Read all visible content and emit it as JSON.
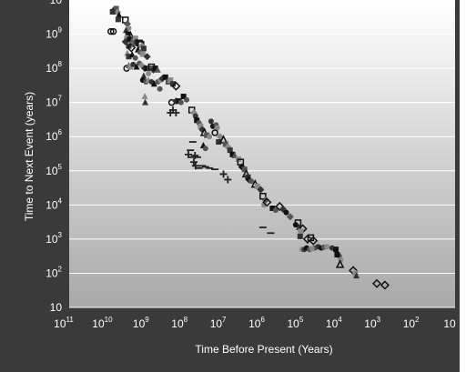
{
  "colors": {
    "frame": "#3a3a3a",
    "plot_top": "#ffffff",
    "plot_bottom": "#a8a8a8",
    "grid": "#ffffff",
    "text": "#ffffff"
  },
  "chart_data": {
    "type": "scatter",
    "xscale": "log",
    "yscale": "log",
    "x_reversed": true,
    "xlabel": "Time Before Present (Years)",
    "ylabel": "Time to Next Event (years)",
    "xlim": [
      100000000000.0,
      1
    ],
    "ylim": [
      10,
      10000000000.0
    ],
    "grid": "horizontal",
    "legend": "none",
    "x_ticks": [
      {
        "base": "10",
        "exp": "11"
      },
      {
        "base": "10",
        "exp": "10"
      },
      {
        "base": "10",
        "exp": "9"
      },
      {
        "base": "10",
        "exp": "8"
      },
      {
        "base": "10",
        "exp": "7"
      },
      {
        "base": "10",
        "exp": "6"
      },
      {
        "base": "10",
        "exp": "5"
      },
      {
        "base": "10",
        "exp": "4"
      },
      {
        "base": "10",
        "exp": "3"
      },
      {
        "base": "10",
        "exp": "2"
      },
      {
        "base": "10",
        "exp": ""
      }
    ],
    "y_ticks": [
      {
        "base": "10",
        "exp": ""
      },
      {
        "base": "10",
        "exp": "2"
      },
      {
        "base": "10",
        "exp": "3"
      },
      {
        "base": "10",
        "exp": "4"
      },
      {
        "base": "10",
        "exp": "5"
      },
      {
        "base": "10",
        "exp": "6"
      },
      {
        "base": "10",
        "exp": "7"
      },
      {
        "base": "10",
        "exp": "8"
      },
      {
        "base": "10",
        "exp": "9"
      },
      {
        "base": "10",
        "exp": ""
      }
    ],
    "points": [
      {
        "x": 5000000000.0,
        "y": 5000000000.0,
        "m": "diamond-open"
      },
      {
        "x": 4600000000.0,
        "y": 5600000000.0,
        "m": "square"
      },
      {
        "x": 4200000000.0,
        "y": 4400000000.0,
        "m": "diamond"
      },
      {
        "x": 5800000000.0,
        "y": 4500000000.0,
        "m": "square"
      },
      {
        "x": 3800000000.0,
        "y": 3600000000.0,
        "m": "triangle"
      },
      {
        "x": 6500000000.0,
        "y": 1200000000.0,
        "m": "circle-open"
      },
      {
        "x": 5500000000.0,
        "y": 1200000000.0,
        "m": "circle-open"
      },
      {
        "x": 4000000000.0,
        "y": 2700000000.0,
        "m": "square"
      },
      {
        "x": 2500000000.0,
        "y": 2600000000.0,
        "m": "square-open"
      },
      {
        "x": 2200000000.0,
        "y": 2000000000.0,
        "m": "diamond"
      },
      {
        "x": 2000000000.0,
        "y": 1500000000.0,
        "m": "circle"
      },
      {
        "x": 2400000000.0,
        "y": 1300000000.0,
        "m": "triangle"
      },
      {
        "x": 2100000000.0,
        "y": 1000000000.0,
        "m": "square"
      },
      {
        "x": 1800000000.0,
        "y": 900000000.0,
        "m": "triangle-open"
      },
      {
        "x": 2300000000.0,
        "y": 800000000.0,
        "m": "circle"
      },
      {
        "x": 2500000000.0,
        "y": 600000000.0,
        "m": "diamond"
      },
      {
        "x": 1900000000.0,
        "y": 700000000.0,
        "m": "square"
      },
      {
        "x": 1600000000.0,
        "y": 650000000.0,
        "m": "triangle"
      },
      {
        "x": 1500000000.0,
        "y": 500000000.0,
        "m": "circle"
      },
      {
        "x": 2000000000.0,
        "y": 450000000.0,
        "m": "square"
      },
      {
        "x": 1700000000.0,
        "y": 400000000.0,
        "m": "diamond-open"
      },
      {
        "x": 1400000000.0,
        "y": 550000000.0,
        "m": "triangle"
      },
      {
        "x": 1300000000.0,
        "y": 750000000.0,
        "m": "square"
      },
      {
        "x": 1200000000.0,
        "y": 600000000.0,
        "m": "circle"
      },
      {
        "x": 1000000000.0,
        "y": 550000000.0,
        "m": "square-open"
      },
      {
        "x": 900000000.0,
        "y": 500000000.0,
        "m": "square-open"
      },
      {
        "x": 850000000.0,
        "y": 450000000.0,
        "m": "diamond"
      },
      {
        "x": 750000000.0,
        "y": 380000000.0,
        "m": "square"
      },
      {
        "x": 1100000000.0,
        "y": 350000000.0,
        "m": "triangle"
      },
      {
        "x": 950000000.0,
        "y": 300000000.0,
        "m": "circle"
      },
      {
        "x": 2200000000.0,
        "y": 280000000.0,
        "m": "triangle"
      },
      {
        "x": 2000000000.0,
        "y": 220000000.0,
        "m": "square"
      },
      {
        "x": 1600000000.0,
        "y": 250000000.0,
        "m": "triangle"
      },
      {
        "x": 1300000000.0,
        "y": 200000000.0,
        "m": "circle"
      },
      {
        "x": 800000000.0,
        "y": 260000000.0,
        "m": "square"
      },
      {
        "x": 600000000.0,
        "y": 220000000.0,
        "m": "diamond"
      },
      {
        "x": 2300000000.0,
        "y": 100000000.0,
        "m": "circle-open"
      },
      {
        "x": 2000000000.0,
        "y": 120000000.0,
        "m": "triangle"
      },
      {
        "x": 1800000000.0,
        "y": 110000000.0,
        "m": "square"
      },
      {
        "x": 1500000000.0,
        "y": 130000000.0,
        "m": "circle"
      },
      {
        "x": 1200000000.0,
        "y": 110000000.0,
        "m": "triangle"
      },
      {
        "x": 1000000000.0,
        "y": 140000000.0,
        "m": "circle"
      },
      {
        "x": 850000000.0,
        "y": 120000000.0,
        "m": "diamond"
      },
      {
        "x": 700000000.0,
        "y": 100000000.0,
        "m": "diamond"
      },
      {
        "x": 600000000.0,
        "y": 100000000.0,
        "m": "square"
      },
      {
        "x": 500000000.0,
        "y": 100000000.0,
        "m": "square"
      },
      {
        "x": 450000000.0,
        "y": 110000000.0,
        "m": "square-open"
      },
      {
        "x": 400000000.0,
        "y": 90000000.0,
        "m": "diamond"
      },
      {
        "x": 350000000.0,
        "y": 100000000.0,
        "m": "square"
      },
      {
        "x": 300000000.0,
        "y": 90000000.0,
        "m": "triangle"
      },
      {
        "x": 550000000.0,
        "y": 70000000.0,
        "m": "circle"
      },
      {
        "x": 750000000.0,
        "y": 60000000.0,
        "m": "triangle"
      },
      {
        "x": 800000000.0,
        "y": 45000000.0,
        "m": "circle"
      },
      {
        "x": 650000000.0,
        "y": 40000000.0,
        "m": "circle"
      },
      {
        "x": 550000000.0,
        "y": 45000000.0,
        "m": "triangle"
      },
      {
        "x": 450000000.0,
        "y": 40000000.0,
        "m": "circle"
      },
      {
        "x": 380000000.0,
        "y": 35000000.0,
        "m": "triangle"
      },
      {
        "x": 300000000.0,
        "y": 40000000.0,
        "m": "circle"
      },
      {
        "x": 250000000.0,
        "y": 45000000.0,
        "m": "circle"
      },
      {
        "x": 220000000.0,
        "y": 50000000.0,
        "m": "diamond"
      },
      {
        "x": 180000000.0,
        "y": 55000000.0,
        "m": "square"
      },
      {
        "x": 150000000.0,
        "y": 40000000.0,
        "m": "square"
      },
      {
        "x": 130000000.0,
        "y": 45000000.0,
        "m": "square"
      },
      {
        "x": 110000000.0,
        "y": 35000000.0,
        "m": "square"
      },
      {
        "x": 90000000.0,
        "y": 30000000.0,
        "m": "diamond-open"
      },
      {
        "x": 260000000.0,
        "y": 25000000.0,
        "m": "circle"
      },
      {
        "x": 700000000.0,
        "y": 15000000.0,
        "m": "triangle"
      },
      {
        "x": 680000000.0,
        "y": 10000000.0,
        "m": "triangle"
      },
      {
        "x": 55000000.0,
        "y": 15000000.0,
        "m": "square"
      },
      {
        "x": 45000000.0,
        "y": 12000000.0,
        "m": "circle"
      },
      {
        "x": 120000000.0,
        "y": 10000000.0,
        "m": "circle-open"
      },
      {
        "x": 90000000.0,
        "y": 11000000.0,
        "m": "diamond"
      },
      {
        "x": 75000000.0,
        "y": 11000000.0,
        "m": "square"
      },
      {
        "x": 65000000.0,
        "y": 10000000.0,
        "m": "circle"
      },
      {
        "x": 110000000.0,
        "y": 6000000.0,
        "m": "plus"
      },
      {
        "x": 90000000.0,
        "y": 5000000.0,
        "m": "plus"
      },
      {
        "x": 130000000.0,
        "y": 5000000.0,
        "m": "plus"
      },
      {
        "x": 32000000.0,
        "y": 6000000.0,
        "m": "square-open"
      },
      {
        "x": 28000000.0,
        "y": 5000000.0,
        "m": "diamond"
      },
      {
        "x": 25000000.0,
        "y": 4000000.0,
        "m": "circle"
      },
      {
        "x": 23000000.0,
        "y": 3000000.0,
        "m": "square"
      },
      {
        "x": 20000000.0,
        "y": 2500000.0,
        "m": "circle"
      },
      {
        "x": 18000000.0,
        "y": 2000000.0,
        "m": "square"
      },
      {
        "x": 16000000.0,
        "y": 1600000.0,
        "m": "diamond"
      },
      {
        "x": 14000000.0,
        "y": 1300000.0,
        "m": "triangle-open"
      },
      {
        "x": 12000000.0,
        "y": 1100000.0,
        "m": "square"
      },
      {
        "x": 10000000.0,
        "y": 1000000.0,
        "m": "circle"
      },
      {
        "x": 9000000.0,
        "y": 2800000.0,
        "m": "circle"
      },
      {
        "x": 8000000.0,
        "y": 2000000.0,
        "m": "circle"
      },
      {
        "x": 6500000.0,
        "y": 2200000.0,
        "m": "circle"
      },
      {
        "x": 6000000.0,
        "y": 1800000.0,
        "m": "circle"
      },
      {
        "x": 7000000.0,
        "y": 1300000.0,
        "m": "circle-open"
      },
      {
        "x": 15000000.0,
        "y": 550000.0,
        "m": "triangle"
      },
      {
        "x": 13000000.0,
        "y": 450000.0,
        "m": "circle"
      },
      {
        "x": 5000000.0,
        "y": 1000000.0,
        "m": "diamond"
      },
      {
        "x": 5500000.0,
        "y": 700000.0,
        "m": "square"
      },
      {
        "x": 4000000.0,
        "y": 800000.0,
        "m": "triangle-open"
      },
      {
        "x": 3500000.0,
        "y": 600000.0,
        "m": "square"
      },
      {
        "x": 3000000.0,
        "y": 500000.0,
        "m": "diamond"
      },
      {
        "x": 2600000.0,
        "y": 400000.0,
        "m": "square"
      },
      {
        "x": 2200000.0,
        "y": 300000.0,
        "m": "square"
      },
      {
        "x": 1900000.0,
        "y": 280000.0,
        "m": "triangle"
      },
      {
        "x": 1500000.0,
        "y": 220000.0,
        "m": "square"
      },
      {
        "x": 1300000.0,
        "y": 180000.0,
        "m": "square-open"
      },
      {
        "x": 1200000.0,
        "y": 130000.0,
        "m": "diamond"
      },
      {
        "x": 1000000.0,
        "y": 110000.0,
        "m": "square"
      },
      {
        "x": 900000.0,
        "y": 80000.0,
        "m": "triangle-open"
      },
      {
        "x": 800000.0,
        "y": 65000.0,
        "m": "square"
      },
      {
        "x": 750000.0,
        "y": 55000.0,
        "m": "diamond"
      },
      {
        "x": 650000.0,
        "y": 50000.0,
        "m": "circle"
      },
      {
        "x": 30000000.0,
        "y": 700000.0,
        "m": "minus"
      },
      {
        "x": 35000000.0,
        "y": 400000.0,
        "m": "minus"
      },
      {
        "x": 40000000.0,
        "y": 300000.0,
        "m": "plus"
      },
      {
        "x": 33000000.0,
        "y": 250000.0,
        "m": "minus"
      },
      {
        "x": 26000000.0,
        "y": 280000.0,
        "m": "plus"
      },
      {
        "x": 22000000.0,
        "y": 250000.0,
        "m": "minus"
      },
      {
        "x": 28000000.0,
        "y": 180000.0,
        "m": "plus"
      },
      {
        "x": 25000000.0,
        "y": 140000.0,
        "m": "plus"
      },
      {
        "x": 20000000.0,
        "y": 120000.0,
        "m": "minus"
      },
      {
        "x": 16000000.0,
        "y": 140000.0,
        "m": "minus"
      },
      {
        "x": 13000000.0,
        "y": 130000.0,
        "m": "minus"
      },
      {
        "x": 10000000.0,
        "y": 120000.0,
        "m": "minus"
      },
      {
        "x": 7000000.0,
        "y": 110000.0,
        "m": "minus"
      },
      {
        "x": 4000000.0,
        "y": 80000.0,
        "m": "plus"
      },
      {
        "x": 3000000.0,
        "y": 55000.0,
        "m": "plus"
      },
      {
        "x": 500000.0,
        "y": 40000.0,
        "m": "triangle-open"
      },
      {
        "x": 430000.0,
        "y": 35000.0,
        "m": "square"
      },
      {
        "x": 350000.0,
        "y": 28000.0,
        "m": "diamond"
      },
      {
        "x": 300000.0,
        "y": 18000.0,
        "m": "square-open"
      },
      {
        "x": 250000.0,
        "y": 14000.0,
        "m": "diamond"
      },
      {
        "x": 280000.0,
        "y": 10000.0,
        "m": "circle"
      },
      {
        "x": 230000.0,
        "y": 12000.0,
        "m": "diamond-open"
      },
      {
        "x": 160000.0,
        "y": 8000.0,
        "m": "square"
      },
      {
        "x": 130000.0,
        "y": 7000.0,
        "m": "circle"
      },
      {
        "x": 100000.0,
        "y": 9000.0,
        "m": "diamond-open"
      },
      {
        "x": 80000.0,
        "y": 7500.0,
        "m": "diamond"
      },
      {
        "x": 65000.0,
        "y": 6000.0,
        "m": "circle"
      },
      {
        "x": 50000.0,
        "y": 4500.0,
        "m": "diamond"
      },
      {
        "x": 30000.0,
        "y": 3000.0,
        "m": "square-open"
      },
      {
        "x": 28000.0,
        "y": 2200.0,
        "m": "triangle"
      },
      {
        "x": 35000.0,
        "y": 2600.0,
        "m": "circle"
      },
      {
        "x": 22000.0,
        "y": 2000.0,
        "m": "diamond-open"
      },
      {
        "x": 25000.0,
        "y": 1700.0,
        "m": "square"
      },
      {
        "x": 26000.0,
        "y": 1200.0,
        "m": "square"
      },
      {
        "x": 16000.0,
        "y": 1000.0,
        "m": "diamond-open"
      },
      {
        "x": 11000.0,
        "y": 900.0,
        "m": "diamond-open"
      },
      {
        "x": 13000.0,
        "y": 1100.0,
        "m": "square-open"
      },
      {
        "x": 300000.0,
        "y": 2200.0,
        "m": "minus"
      },
      {
        "x": 180000.0,
        "y": 1500.0,
        "m": "minus"
      },
      {
        "x": 10000.0,
        "y": 550.0,
        "m": "circle"
      },
      {
        "x": 23000.0,
        "y": 500.0,
        "m": "circle"
      },
      {
        "x": 20000.0,
        "y": 500.0,
        "m": "circle"
      },
      {
        "x": 17000.0,
        "y": 550.0,
        "m": "circle"
      },
      {
        "x": 14000.0,
        "y": 500.0,
        "m": "circle"
      },
      {
        "x": 12000.0,
        "y": 520.0,
        "m": "circle"
      },
      {
        "x": 8000.0,
        "y": 600.0,
        "m": "circle"
      },
      {
        "x": 6500.0,
        "y": 550.0,
        "m": "circle"
      },
      {
        "x": 5500.0,
        "y": 580.0,
        "m": "circle"
      },
      {
        "x": 4500.0,
        "y": 600.0,
        "m": "circle"
      },
      {
        "x": 3200.0,
        "y": 550.0,
        "m": "circle"
      },
      {
        "x": 2500.0,
        "y": 500.0,
        "m": "square"
      },
      {
        "x": 2000.0,
        "y": 320.0,
        "m": "circle"
      },
      {
        "x": 1800.0,
        "y": 250.0,
        "m": "circle"
      },
      {
        "x": 1900.0,
        "y": 180.0,
        "m": "triangle-open"
      },
      {
        "x": 2300.0,
        "y": 350.0,
        "m": "square"
      },
      {
        "x": 800.0,
        "y": 120.0,
        "m": "diamond-open"
      },
      {
        "x": 700.0,
        "y": 100.0,
        "m": "square"
      },
      {
        "x": 650.0,
        "y": 85.0,
        "m": "triangle"
      },
      {
        "x": 170.0,
        "y": 50.0,
        "m": "diamond-open"
      },
      {
        "x": 100.0,
        "y": 45.0,
        "m": "diamond-open"
      }
    ]
  }
}
